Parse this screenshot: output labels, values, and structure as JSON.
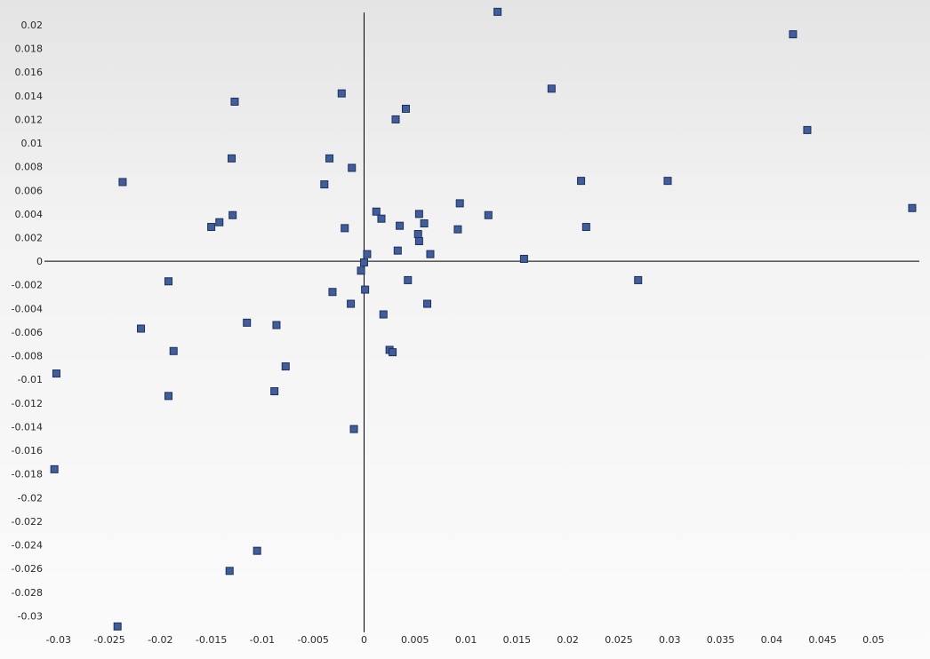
{
  "chart_data": {
    "type": "scatter",
    "title": "",
    "xlabel": "",
    "ylabel": "",
    "xlim": [
      -0.0305,
      0.0545
    ],
    "ylim": [
      -0.0314,
      0.0212
    ],
    "grid": false,
    "legend": "none",
    "marker": {
      "shape": "square",
      "fill": "#3f5e9b",
      "stroke": "#1e2f5c"
    },
    "axis_color": "#000000",
    "x_ticks": [
      {
        "v": -0.03,
        "label": "-0.03"
      },
      {
        "v": -0.025,
        "label": "-0.025"
      },
      {
        "v": -0.02,
        "label": "-0.02"
      },
      {
        "v": -0.015,
        "label": "-0.015"
      },
      {
        "v": -0.01,
        "label": "-0.01"
      },
      {
        "v": -0.005,
        "label": "-0.005"
      },
      {
        "v": 0,
        "label": "0"
      },
      {
        "v": 0.005,
        "label": "0.005"
      },
      {
        "v": 0.01,
        "label": "0.01"
      },
      {
        "v": 0.015,
        "label": "0.015"
      },
      {
        "v": 0.02,
        "label": "0.02"
      },
      {
        "v": 0.025,
        "label": "0.025"
      },
      {
        "v": 0.03,
        "label": "0.03"
      },
      {
        "v": 0.035,
        "label": "0.035"
      },
      {
        "v": 0.04,
        "label": "0.04"
      },
      {
        "v": 0.045,
        "label": "0.045"
      },
      {
        "v": 0.05,
        "label": "0.05"
      }
    ],
    "y_ticks": [
      {
        "v": 0.02,
        "label": "0.02"
      },
      {
        "v": 0.018,
        "label": "0.018"
      },
      {
        "v": 0.016,
        "label": "0.016"
      },
      {
        "v": 0.014,
        "label": "0.014"
      },
      {
        "v": 0.012,
        "label": "0.012"
      },
      {
        "v": 0.01,
        "label": "0.01"
      },
      {
        "v": 0.008,
        "label": "0.008"
      },
      {
        "v": 0.006,
        "label": "0.006"
      },
      {
        "v": 0.004,
        "label": "0.004"
      },
      {
        "v": 0.002,
        "label": "0.002"
      },
      {
        "v": 0,
        "label": "0"
      },
      {
        "v": -0.002,
        "label": "-0.002"
      },
      {
        "v": -0.004,
        "label": "-0.004"
      },
      {
        "v": -0.006,
        "label": "-0.006"
      },
      {
        "v": -0.008,
        "label": "-0.008"
      },
      {
        "v": -0.01,
        "label": "-0.01"
      },
      {
        "v": -0.012,
        "label": "-0.012"
      },
      {
        "v": -0.014,
        "label": "-0.014"
      },
      {
        "v": -0.016,
        "label": "-0.016"
      },
      {
        "v": -0.018,
        "label": "-0.018"
      },
      {
        "v": -0.02,
        "label": "-0.02"
      },
      {
        "v": -0.022,
        "label": "-0.022"
      },
      {
        "v": -0.024,
        "label": "-0.024"
      },
      {
        "v": -0.026,
        "label": "-0.026"
      },
      {
        "v": -0.028,
        "label": "-0.028"
      },
      {
        "v": -0.03,
        "label": "-0.03"
      }
    ],
    "series": [
      {
        "points": [
          [
            0.0131,
            0.0211
          ],
          [
            0.0421,
            0.0192
          ],
          [
            0.0184,
            0.0146
          ],
          [
            0.0435,
            0.0111
          ],
          [
            0.0041,
            0.0129
          ],
          [
            0.0031,
            0.012
          ],
          [
            -0.0022,
            0.0142
          ],
          [
            -0.0127,
            0.0135
          ],
          [
            -0.0237,
            0.0067
          ],
          [
            -0.013,
            0.0087
          ],
          [
            -0.0034,
            0.0087
          ],
          [
            -0.0012,
            0.0079
          ],
          [
            -0.0039,
            0.0065
          ],
          [
            0.0213,
            0.0068
          ],
          [
            0.0298,
            0.0068
          ],
          [
            0.0538,
            0.0045
          ],
          [
            0.0094,
            0.0049
          ],
          [
            0.0122,
            0.0039
          ],
          [
            0.0012,
            0.0042
          ],
          [
            0.0054,
            0.004
          ],
          [
            -0.0129,
            0.0039
          ],
          [
            -0.0142,
            0.0033
          ],
          [
            -0.015,
            0.0029
          ],
          [
            0.0017,
            0.0036
          ],
          [
            0.0059,
            0.0032
          ],
          [
            0.0035,
            0.003
          ],
          [
            0.0218,
            0.0029
          ],
          [
            -0.0019,
            0.0028
          ],
          [
            0.0092,
            0.0027
          ],
          [
            0.0053,
            0.0023
          ],
          [
            0.0054,
            0.0017
          ],
          [
            0.0033,
            0.0009
          ],
          [
            0.0003,
            0.0006
          ],
          [
            0.0065,
            0.0006
          ],
          [
            0.0157,
            0.0002
          ],
          [
            0.0,
            -0.0001
          ],
          [
            -0.0003,
            -0.0008
          ],
          [
            0.0043,
            -0.0016
          ],
          [
            0.0269,
            -0.0016
          ],
          [
            -0.0192,
            -0.0017
          ],
          [
            0.0001,
            -0.0024
          ],
          [
            -0.0031,
            -0.0026
          ],
          [
            -0.0013,
            -0.0036
          ],
          [
            0.0062,
            -0.0036
          ],
          [
            0.0019,
            -0.0045
          ],
          [
            -0.0115,
            -0.0052
          ],
          [
            -0.0086,
            -0.0054
          ],
          [
            -0.0219,
            -0.0057
          ],
          [
            -0.0187,
            -0.0076
          ],
          [
            0.0025,
            -0.0075
          ],
          [
            0.0028,
            -0.0077
          ],
          [
            -0.0077,
            -0.0089
          ],
          [
            -0.0302,
            -0.0095
          ],
          [
            -0.0088,
            -0.011
          ],
          [
            -0.0192,
            -0.0114
          ],
          [
            -0.001,
            -0.0142
          ],
          [
            -0.0304,
            -0.0176
          ],
          [
            -0.0105,
            -0.0245
          ],
          [
            -0.0132,
            -0.0262
          ],
          [
            -0.0242,
            -0.0309
          ]
        ]
      }
    ]
  }
}
